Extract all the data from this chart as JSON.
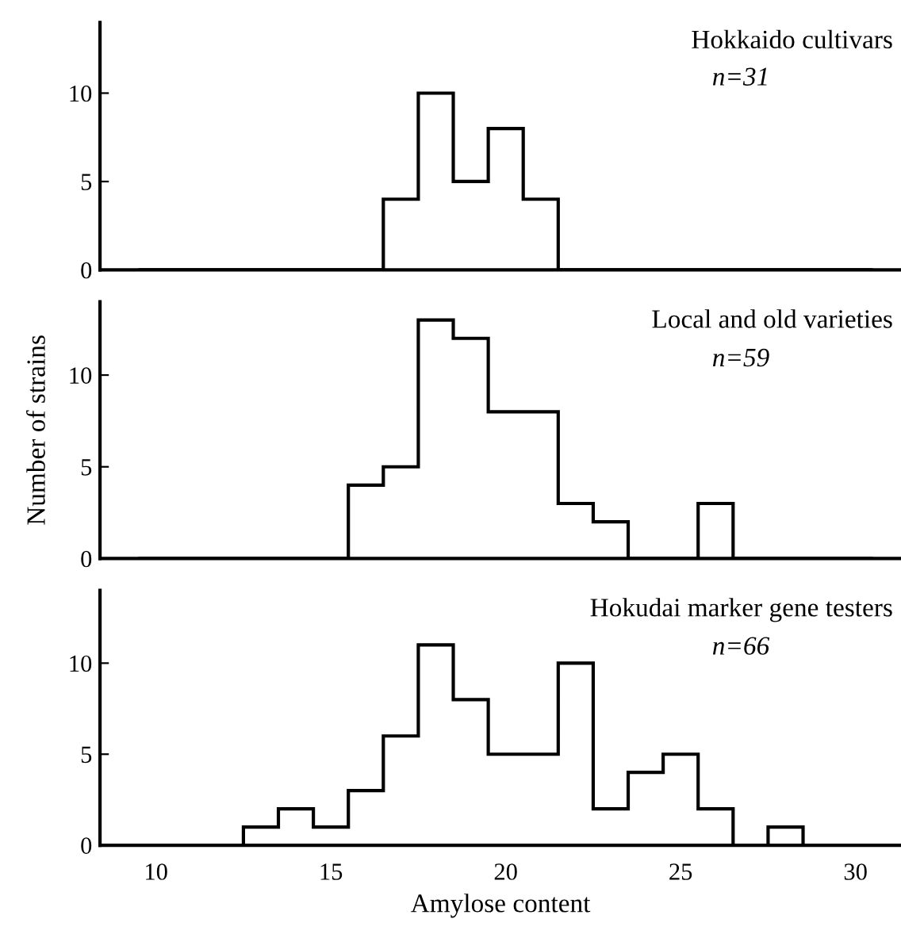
{
  "chart_data": [
    {
      "type": "histogram",
      "title": "Hokkaido cultivars",
      "subtitle": "n=31",
      "bins": [
        9.5,
        10.5,
        11.5,
        12.5,
        13.5,
        14.5,
        15.5,
        16.5,
        17.5,
        18.5,
        19.5,
        20.5,
        21.5,
        22.5,
        23.5,
        24.5,
        25.5,
        26.5,
        27.5,
        28.5,
        29.5,
        30.5
      ],
      "values": [
        0,
        0,
        0,
        0,
        0,
        0,
        0,
        4,
        10,
        5,
        8,
        4,
        0,
        0,
        0,
        0,
        0,
        0,
        0,
        0,
        0
      ],
      "color": "#000000",
      "xlim": [
        8.4,
        31.3
      ],
      "ylim": [
        0,
        14
      ],
      "yticks": [
        0,
        5,
        10
      ],
      "tick_labels": "y"
    },
    {
      "type": "histogram",
      "title": "Local and old varieties",
      "subtitle": "n=59",
      "ylabel": "Number of strains",
      "bins": [
        9.5,
        10.5,
        11.5,
        12.5,
        13.5,
        14.5,
        15.5,
        16.5,
        17.5,
        18.5,
        19.5,
        20.5,
        21.5,
        22.5,
        23.5,
        24.5,
        25.5,
        26.5,
        27.5,
        28.5,
        29.5,
        30.5
      ],
      "values": [
        0,
        0,
        0,
        0,
        0,
        0,
        4,
        5,
        13,
        12,
        8,
        8,
        3,
        2,
        0,
        0,
        3,
        0,
        0,
        0,
        0
      ],
      "color": "#000000",
      "xlim": [
        8.4,
        31.3
      ],
      "ylim": [
        0,
        14
      ],
      "yticks": [
        0,
        5,
        10
      ],
      "tick_labels": "y"
    },
    {
      "type": "histogram",
      "title": "Hokudai marker gene testers",
      "subtitle": "n=66",
      "xlabel": "Amylose content",
      "bins": [
        9.5,
        10.5,
        11.5,
        12.5,
        13.5,
        14.5,
        15.5,
        16.5,
        17.5,
        18.5,
        19.5,
        20.5,
        21.5,
        22.5,
        23.5,
        24.5,
        25.5,
        26.5,
        27.5,
        28.5,
        29.5,
        30.5
      ],
      "values": [
        0,
        0,
        0,
        1,
        2,
        1,
        3,
        6,
        11,
        8,
        5,
        5,
        10,
        2,
        4,
        5,
        2,
        0,
        1,
        0,
        0
      ],
      "color": "#000000",
      "xlim": [
        8.4,
        31.3
      ],
      "ylim": [
        0,
        14
      ],
      "xticks": [
        10,
        15,
        20,
        25,
        30
      ],
      "yticks": [
        0,
        5,
        10
      ]
    }
  ]
}
